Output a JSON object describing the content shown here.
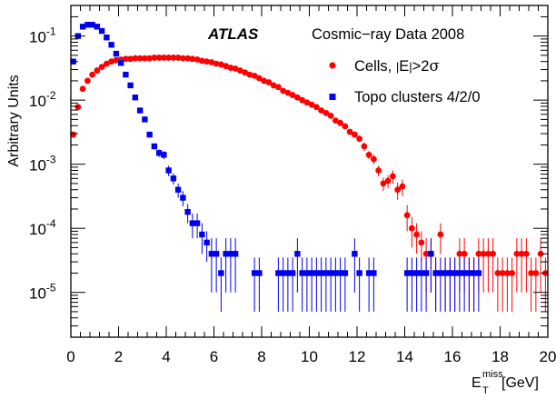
{
  "chart_data": {
    "type": "scatter",
    "experiment_label": "ATLAS",
    "dataset_label": "Cosmic−ray Data 2008",
    "xlabel": "E",
    "xlabel_sup": "miss",
    "xlabel_sub": "T",
    "xlabel_unit": " [GeV]",
    "ylabel": "Arbitrary Units",
    "xlim": [
      0,
      20
    ],
    "ylim": [
      2e-06,
      0.3
    ],
    "y_scale": "log",
    "x_ticks": [
      {
        "value": 0,
        "label": "0"
      },
      {
        "value": 2,
        "label": "2"
      },
      {
        "value": 4,
        "label": "4"
      },
      {
        "value": 6,
        "label": "6"
      },
      {
        "value": 8,
        "label": "8"
      },
      {
        "value": 10,
        "label": "10"
      },
      {
        "value": 12,
        "label": "12"
      },
      {
        "value": 14,
        "label": "14"
      },
      {
        "value": 16,
        "label": "16"
      },
      {
        "value": 18,
        "label": "18"
      },
      {
        "value": 20,
        "label": "20"
      }
    ],
    "y_ticks": [
      {
        "value": 0.1,
        "base": "10",
        "exp": "-1"
      },
      {
        "value": 0.01,
        "base": "10",
        "exp": "-2"
      },
      {
        "value": 0.001,
        "base": "10",
        "exp": "-3"
      },
      {
        "value": 0.0001,
        "base": "10",
        "exp": "-4"
      },
      {
        "value": 1e-05,
        "base": "10",
        "exp": "-5"
      }
    ],
    "grid": false,
    "legend_position": "top-right",
    "series": [
      {
        "name": "Cells, |E|>2σ",
        "legend_parts": [
          "Cells, ",
          "|",
          "E",
          "|",
          ">2",
          "σ"
        ],
        "color": "#ff0000",
        "marker": "circle",
        "x": [
          0.1,
          0.3,
          0.5,
          0.7,
          0.9,
          1.1,
          1.3,
          1.5,
          1.7,
          1.9,
          2.1,
          2.3,
          2.5,
          2.7,
          2.9,
          3.1,
          3.3,
          3.5,
          3.7,
          3.9,
          4.1,
          4.3,
          4.5,
          4.7,
          4.9,
          5.1,
          5.3,
          5.5,
          5.7,
          5.9,
          6.1,
          6.3,
          6.5,
          6.7,
          6.9,
          7.1,
          7.3,
          7.5,
          7.7,
          7.9,
          8.1,
          8.3,
          8.5,
          8.7,
          8.9,
          9.1,
          9.3,
          9.5,
          9.7,
          9.9,
          10.1,
          10.3,
          10.5,
          10.7,
          10.9,
          11.1,
          11.3,
          11.5,
          11.7,
          11.9,
          12.1,
          12.3,
          12.5,
          12.7,
          12.9,
          13.1,
          13.3,
          13.5,
          13.7,
          13.9,
          14.1,
          14.3,
          14.5,
          14.7,
          14.9,
          15.1,
          15.3,
          15.5,
          15.7,
          15.9,
          16.1,
          16.3,
          16.5,
          16.7,
          16.9,
          17.1,
          17.3,
          17.5,
          17.7,
          17.9,
          18.1,
          18.3,
          18.5,
          18.7,
          18.9,
          19.1,
          19.3,
          19.5,
          19.7,
          19.9
        ],
        "y": [
          0.0029,
          0.0078,
          0.015,
          0.02,
          0.025,
          0.029,
          0.033,
          0.037,
          0.04,
          0.042,
          0.043,
          0.044,
          0.044,
          0.045,
          0.045,
          0.045,
          0.045,
          0.046,
          0.046,
          0.046,
          0.046,
          0.046,
          0.046,
          0.045,
          0.045,
          0.044,
          0.043,
          0.041,
          0.04,
          0.039,
          0.037,
          0.036,
          0.034,
          0.032,
          0.031,
          0.029,
          0.027,
          0.025,
          0.024,
          0.022,
          0.02,
          0.019,
          0.017,
          0.016,
          0.014,
          0.013,
          0.012,
          0.011,
          0.01,
          0.0092,
          0.0085,
          0.0078,
          0.0069,
          0.0063,
          0.0057,
          0.0048,
          0.0044,
          0.0039,
          0.0032,
          0.0029,
          0.0025,
          0.0019,
          0.0014,
          0.0012,
          0.0008,
          0.0005,
          0.00055,
          0.00065,
          0.0004,
          0.00045,
          0.00016,
          0.0001,
          8e-05,
          6e-05,
          4e-05,
          4e-05,
          2e-05,
          8e-05,
          2e-05,
          2e-05,
          2e-05,
          4e-05,
          4e-05,
          2e-05,
          2e-05,
          4e-05,
          4e-05,
          4e-05,
          4e-05,
          2e-05,
          2e-05,
          2e-05,
          2e-05,
          4e-05,
          4e-05,
          4e-05,
          2e-05,
          2e-05,
          4e-05,
          2e-05
        ],
        "err_low": [
          0.0028,
          0.0075,
          0.0145,
          0.0193,
          0.0241,
          0.028,
          0.0319,
          0.0357,
          0.0387,
          0.0406,
          0.0416,
          0.0426,
          0.0426,
          0.0436,
          0.0436,
          0.0436,
          0.0436,
          0.0446,
          0.0446,
          0.0446,
          0.0446,
          0.0446,
          0.0446,
          0.0436,
          0.0436,
          0.0426,
          0.0416,
          0.0397,
          0.0387,
          0.0377,
          0.0358,
          0.0348,
          0.0329,
          0.031,
          0.03,
          0.028,
          0.0261,
          0.0241,
          0.0232,
          0.0212,
          0.0193,
          0.0183,
          0.0164,
          0.0154,
          0.0135,
          0.0125,
          0.0115,
          0.0105,
          0.0096,
          0.0088,
          0.0081,
          0.0074,
          0.0066,
          0.006,
          0.0054,
          0.0045,
          0.0041,
          0.0036,
          0.0029,
          0.0026,
          0.0022,
          0.0016,
          0.0012,
          0.001,
          0.00065,
          0.00038,
          0.00042,
          0.0005,
          0.00028,
          0.00032,
          9e-05,
          5e-05,
          4e-05,
          3e-05,
          1e-05,
          1e-05,
          5e-06,
          4e-05,
          5e-06,
          5e-06,
          5e-06,
          1e-05,
          1e-05,
          5e-06,
          5e-06,
          1e-05,
          1e-05,
          1e-05,
          1e-05,
          5e-06,
          5e-06,
          5e-06,
          5e-06,
          1e-05,
          1e-05,
          1e-05,
          5e-06,
          5e-06,
          1e-05,
          5e-06
        ],
        "err_high": [
          0.003,
          0.0081,
          0.0155,
          0.0207,
          0.0259,
          0.03,
          0.0341,
          0.0383,
          0.0413,
          0.0434,
          0.0444,
          0.0454,
          0.0454,
          0.0464,
          0.0464,
          0.0464,
          0.0464,
          0.0474,
          0.0474,
          0.0474,
          0.0474,
          0.0474,
          0.0474,
          0.0464,
          0.0464,
          0.0454,
          0.0444,
          0.0423,
          0.0413,
          0.0403,
          0.0382,
          0.0372,
          0.0351,
          0.033,
          0.032,
          0.03,
          0.0279,
          0.0259,
          0.0248,
          0.0228,
          0.0207,
          0.0197,
          0.0176,
          0.0166,
          0.0145,
          0.0135,
          0.0125,
          0.0115,
          0.0104,
          0.0096,
          0.0089,
          0.0082,
          0.0072,
          0.0066,
          0.006,
          0.0051,
          0.0047,
          0.0042,
          0.0035,
          0.0032,
          0.0028,
          0.0022,
          0.0016,
          0.0014,
          0.00095,
          0.00062,
          0.00068,
          0.0008,
          0.00052,
          0.00058,
          0.00023,
          0.00015,
          0.00012,
          9e-05,
          7e-05,
          7e-05,
          3.5e-05,
          0.00012,
          3.5e-05,
          3.5e-05,
          3.5e-05,
          7e-05,
          7e-05,
          3.5e-05,
          3.5e-05,
          7e-05,
          7e-05,
          7e-05,
          7e-05,
          3.5e-05,
          3.5e-05,
          3.5e-05,
          3.5e-05,
          7e-05,
          7e-05,
          7e-05,
          3.5e-05,
          3.5e-05,
          7e-05,
          3.5e-05
        ]
      },
      {
        "name": "Topo clusters 4/2/0",
        "color": "#0000ee",
        "marker": "square",
        "x": [
          0.1,
          0.3,
          0.5,
          0.7,
          0.9,
          1.1,
          1.3,
          1.5,
          1.7,
          1.9,
          2.1,
          2.3,
          2.5,
          2.7,
          2.9,
          3.1,
          3.3,
          3.5,
          3.7,
          3.9,
          4.1,
          4.3,
          4.5,
          4.7,
          4.9,
          5.1,
          5.3,
          5.5,
          5.7,
          5.9,
          6.1,
          6.3,
          6.5,
          6.7,
          6.9,
          7.7,
          7.9,
          8.7,
          8.9,
          9.1,
          9.3,
          9.5,
          9.7,
          9.9,
          10.1,
          10.3,
          10.5,
          10.7,
          10.9,
          11.1,
          11.3,
          11.5,
          11.9,
          12.1,
          12.5,
          12.7,
          14.1,
          14.3,
          14.5,
          14.7,
          14.9,
          15.1,
          15.3,
          15.5,
          15.7,
          15.9,
          16.1,
          16.3,
          16.5,
          16.7,
          16.9,
          17.1
        ],
        "y": [
          0.04,
          0.1,
          0.14,
          0.15,
          0.15,
          0.14,
          0.12,
          0.095,
          0.073,
          0.053,
          0.038,
          0.025,
          0.017,
          0.011,
          0.0069,
          0.005,
          0.0029,
          0.0019,
          0.0015,
          0.0014,
          0.0008,
          0.0006,
          0.0004,
          0.0003,
          0.00018,
          0.00012,
          0.00012,
          8e-05,
          6e-05,
          4e-05,
          4e-05,
          2e-05,
          4e-05,
          4e-05,
          4e-05,
          2e-05,
          2e-05,
          2e-05,
          2e-05,
          2e-05,
          2e-05,
          4e-05,
          2e-05,
          2e-05,
          2e-05,
          2e-05,
          2e-05,
          2e-05,
          2e-05,
          2e-05,
          2e-05,
          2e-05,
          4e-05,
          2e-05,
          2e-05,
          2e-05,
          2e-05,
          2e-05,
          2e-05,
          2e-05,
          2e-05,
          4e-05,
          2e-05,
          2e-05,
          2e-05,
          2e-05,
          2e-05,
          2e-05,
          2e-05,
          2e-05,
          2e-05,
          2e-05
        ],
        "err_low": [
          0.039,
          0.098,
          0.138,
          0.148,
          0.148,
          0.138,
          0.118,
          0.093,
          0.071,
          0.051,
          0.037,
          0.024,
          0.016,
          0.0105,
          0.0065,
          0.0047,
          0.0026,
          0.0017,
          0.0013,
          0.0012,
          0.00065,
          0.00048,
          0.0003,
          0.00022,
          0.00012,
          7e-05,
          7e-05,
          4e-05,
          3e-05,
          1e-05,
          1e-05,
          5e-06,
          1e-05,
          1e-05,
          1e-05,
          5e-06,
          5e-06,
          5e-06,
          5e-06,
          5e-06,
          5e-06,
          1e-05,
          5e-06,
          5e-06,
          5e-06,
          5e-06,
          5e-06,
          5e-06,
          5e-06,
          5e-06,
          5e-06,
          5e-06,
          1e-05,
          5e-06,
          5e-06,
          5e-06,
          5e-06,
          5e-06,
          5e-06,
          5e-06,
          5e-06,
          1e-05,
          5e-06,
          5e-06,
          5e-06,
          5e-06,
          5e-06,
          5e-06,
          5e-06,
          5e-06,
          5e-06,
          5e-06
        ],
        "err_high": [
          0.041,
          0.102,
          0.142,
          0.152,
          0.152,
          0.142,
          0.122,
          0.097,
          0.075,
          0.055,
          0.039,
          0.026,
          0.018,
          0.0115,
          0.0073,
          0.0053,
          0.0032,
          0.0021,
          0.0017,
          0.0016,
          0.00095,
          0.00072,
          0.0005,
          0.00038,
          0.00024,
          0.00017,
          0.00017,
          0.00012,
          9e-05,
          7e-05,
          7e-05,
          3.5e-05,
          7e-05,
          7e-05,
          7e-05,
          3.5e-05,
          3.5e-05,
          3.5e-05,
          3.5e-05,
          3.5e-05,
          3.5e-05,
          7e-05,
          3.5e-05,
          3.5e-05,
          3.5e-05,
          3.5e-05,
          3.5e-05,
          3.5e-05,
          3.5e-05,
          3.5e-05,
          3.5e-05,
          3.5e-05,
          7e-05,
          3.5e-05,
          3.5e-05,
          3.5e-05,
          3.5e-05,
          3.5e-05,
          3.5e-05,
          3.5e-05,
          3.5e-05,
          7e-05,
          3.5e-05,
          3.5e-05,
          3.5e-05,
          3.5e-05,
          3.5e-05,
          3.5e-05,
          3.5e-05,
          3.5e-05,
          3.5e-05,
          3.5e-05
        ]
      }
    ]
  }
}
